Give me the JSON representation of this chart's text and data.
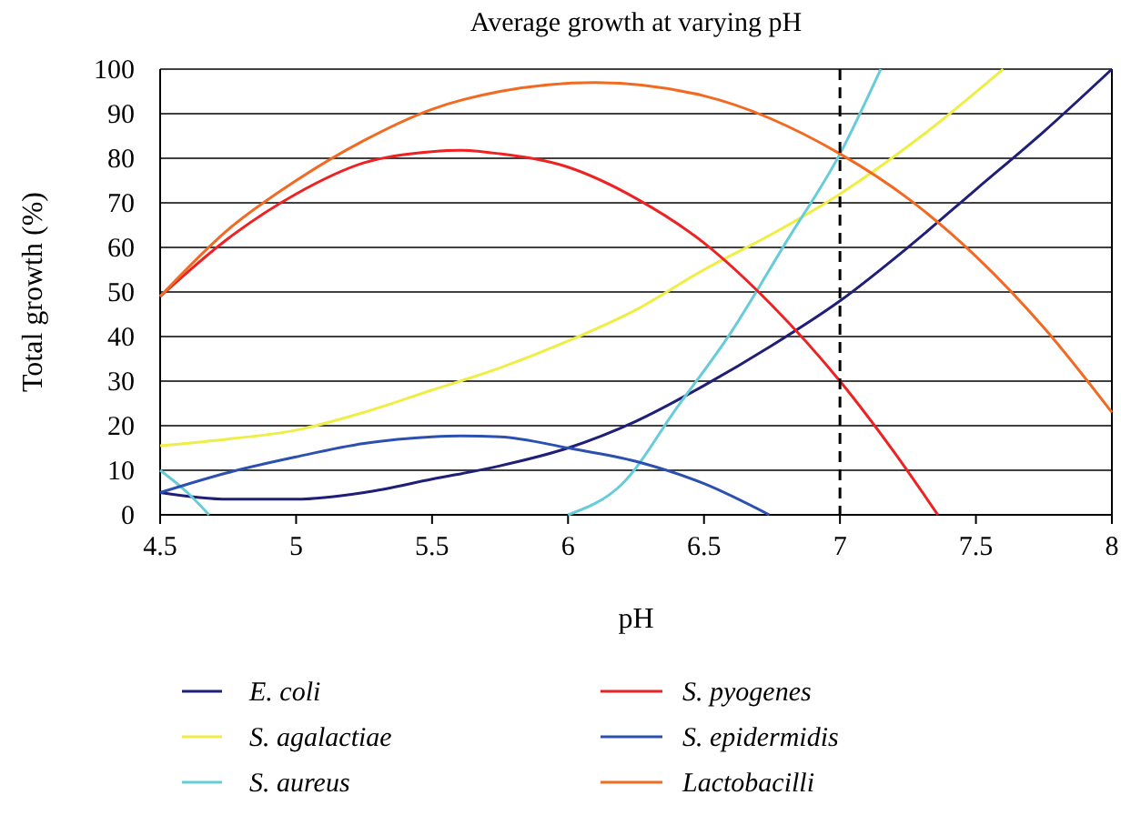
{
  "chart_data": {
    "type": "line",
    "title": "Average growth at varying pH",
    "xlabel": "pH",
    "ylabel": "Total growth (%)",
    "xlim": [
      4.5,
      8
    ],
    "ylim": [
      0,
      100
    ],
    "xticks": [
      4.5,
      5,
      5.5,
      6,
      6.5,
      7,
      7.5,
      8
    ],
    "yticks": [
      0,
      10,
      20,
      30,
      40,
      50,
      60,
      70,
      80,
      90,
      100
    ],
    "grid": "y",
    "legend": "bottom",
    "line_style": "solid",
    "ref_lines": [
      {
        "axis": "x",
        "value": 7,
        "line_style": "dashed",
        "color": "#000000"
      }
    ],
    "series": [
      {
        "name": "E. coli",
        "color": "#1f1f7a",
        "x": [
          4.5,
          4.75,
          5,
          5.25,
          5.5,
          5.75,
          6,
          6.25,
          6.5,
          6.75,
          7,
          7.25,
          7.5,
          7.75,
          8
        ],
        "values": [
          5,
          3.5,
          3.5,
          5,
          8,
          11,
          15,
          21,
          29,
          38,
          48,
          60,
          73,
          86,
          100
        ]
      },
      {
        "name": "S. agalactiae",
        "color": "#eeee44",
        "x": [
          4.5,
          4.75,
          5,
          5.25,
          5.5,
          5.75,
          6,
          6.25,
          6.5,
          6.75,
          7,
          7.3,
          7.6
        ],
        "values": [
          15.5,
          17,
          19,
          23,
          28,
          33,
          39,
          46,
          55,
          63,
          72,
          85,
          100
        ]
      },
      {
        "name": "S. aureus",
        "color": "#66ccd9",
        "x": [
          4.5,
          4.6,
          4.68,
          5.3,
          6,
          6.2,
          6.4,
          6.6,
          6.8,
          7,
          7.15
        ],
        "values": [
          10,
          5,
          0,
          null,
          0,
          7,
          24,
          41,
          61,
          81,
          100
        ]
      },
      {
        "name": "S. pyogenes",
        "color": "#ee2222",
        "x": [
          4.5,
          4.75,
          5,
          5.25,
          5.5,
          5.6,
          5.75,
          6,
          6.25,
          6.5,
          6.75,
          7,
          7.2,
          7.36
        ],
        "values": [
          49,
          62,
          72,
          79,
          81.5,
          81.8,
          81,
          78,
          71,
          61,
          47,
          30,
          14,
          0
        ]
      },
      {
        "name": "S. epidermidis",
        "color": "#2c50b0",
        "x": [
          4.5,
          4.75,
          5,
          5.25,
          5.5,
          5.6,
          5.75,
          6,
          6.25,
          6.5,
          6.74
        ],
        "values": [
          5,
          9.5,
          13,
          16,
          17.5,
          17.7,
          17.5,
          15,
          12,
          7,
          0
        ]
      },
      {
        "name": "Lactobacilli",
        "color": "#f26a22",
        "x": [
          4.5,
          4.75,
          5,
          5.25,
          5.5,
          5.75,
          6.1,
          6.5,
          7,
          7.25,
          7.5,
          7.75,
          8
        ],
        "values": [
          49,
          64,
          75,
          84,
          91,
          95,
          97,
          94,
          81,
          71,
          58,
          42,
          23
        ]
      }
    ]
  }
}
